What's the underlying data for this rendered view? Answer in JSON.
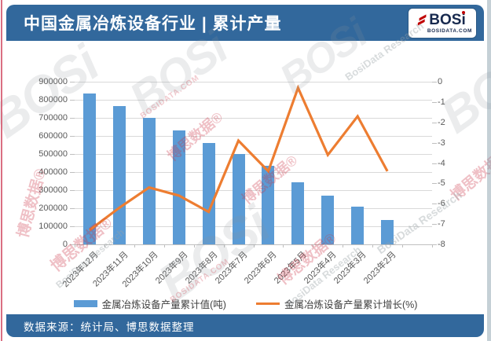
{
  "page": {
    "title": "中国金属冶炼设备行业 | 累计产量",
    "source_note": "数据来源：统计局、博思数据整理"
  },
  "logo": {
    "wordmark_bos": "BOS",
    "wordmark_i": "i",
    "domain": "BOSIDATA.COM"
  },
  "watermark": {
    "logo": "BOSi",
    "cn": "博思数据®",
    "en": "BosiData Research",
    "domain": "BOSIDATA.COM"
  },
  "colors": {
    "header_blue": "#32689c",
    "bar_blue": "#5b9bd5",
    "line_orange": "#ed7d31",
    "gridline": "#d9d9d9",
    "axis_text": "#595959",
    "logo_navy": "#17294e",
    "logo_red": "#c00000"
  },
  "chart_data": {
    "type": "bar",
    "subtype": "combo bar+line, dual axis",
    "categories": [
      "2023年12月",
      "2023年11月",
      "2023年10月",
      "2023年9月",
      "2023年8月",
      "2023年7月",
      "2023年6月",
      "2023年5月",
      "2023年4月",
      "2023年3月",
      "2023年2月"
    ],
    "series": [
      {
        "name": "金属冶炼设备产量累计值(吨)",
        "type": "bar",
        "axis": "left",
        "color": "#5b9bd5",
        "values": [
          835000,
          765000,
          700000,
          630000,
          560000,
          500000,
          435000,
          345000,
          270000,
          210000,
          135000
        ]
      },
      {
        "name": "金属冶炼设备产量累计增长(%)",
        "type": "line",
        "axis": "right",
        "color": "#ed7d31",
        "values": [
          -7.3,
          -6.2,
          -5.2,
          -5.6,
          -6.4,
          -2.9,
          -4.4,
          -0.3,
          -3.6,
          -1.7,
          -4.4
        ]
      }
    ],
    "left_axis": {
      "min": 0,
      "max": 900000,
      "step": 100000,
      "ticks": [
        "0",
        "100000",
        "200000",
        "300000",
        "400000",
        "500000",
        "600000",
        "700000",
        "800000",
        "900000"
      ]
    },
    "right_axis": {
      "min": -8,
      "max": 0,
      "step": 1,
      "ticks": [
        "0",
        "-1",
        "-2",
        "-3",
        "-4",
        "-5",
        "-6",
        "-7",
        "-8"
      ]
    },
    "grid": true,
    "legend_position": "bottom"
  }
}
